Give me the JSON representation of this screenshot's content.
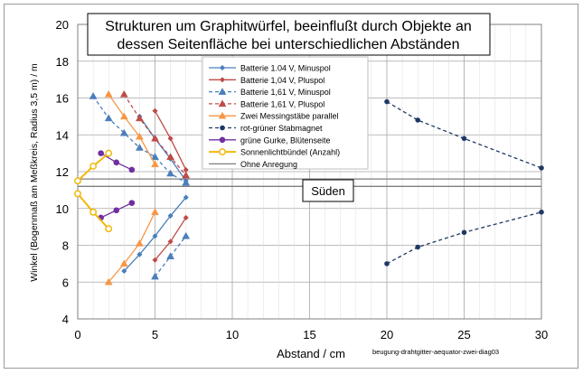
{
  "chart_data": {
    "type": "scatter",
    "title_line1": "Strukturen um Graphitwürfel, beeinflußt durch Objekte an",
    "title_line2": "dessen Seitenfläche bei unterschiedlichen Abständen",
    "xlabel": "Abstand / cm",
    "ylabel": "Winkel (Bogenmaß am Meßkreis, Radius 3,5 m) / m",
    "xlim": [
      0,
      30
    ],
    "ylim": [
      4,
      20
    ],
    "xticks": [
      0,
      5,
      10,
      15,
      20,
      25,
      30
    ],
    "yticks": [
      4,
      6,
      8,
      10,
      12,
      14,
      16,
      18,
      20
    ],
    "grid": true,
    "reference_lines": [
      11.2,
      11.6
    ],
    "annotation": "Süden",
    "annotation_y": 11.0,
    "footnote": "beugung-drahtgitter-aequator-zwei-diag03",
    "legend_position": "upper-middle",
    "series": [
      {
        "name": "Batterie 1.04 V, Minuspol",
        "color": "#4a7ebb",
        "marker": "diamond",
        "dash": "solid",
        "segments": [
          [
            [
              4,
              15
            ],
            [
              5,
              13.8
            ],
            [
              6,
              12.7
            ],
            [
              7,
              11.5
            ]
          ],
          [
            [
              3,
              6.6
            ],
            [
              4,
              7.5
            ],
            [
              5,
              8.5
            ],
            [
              6,
              9.6
            ],
            [
              7,
              10.6
            ]
          ]
        ]
      },
      {
        "name": "Batterie 1,04 V,  Pluspol",
        "color": "#be4b48",
        "marker": "diamond",
        "dash": "solid",
        "segments": [
          [
            [
              5,
              15.3
            ],
            [
              6,
              13.8
            ],
            [
              7,
              12.1
            ]
          ],
          [
            [
              5,
              7.2
            ],
            [
              6,
              8.2
            ],
            [
              7,
              9.5
            ]
          ]
        ]
      },
      {
        "name": "Batterie 1,61 V, Minuspol",
        "color": "#4a7ebb",
        "marker": "triangle",
        "dash": "dashed",
        "segments": [
          [
            [
              1,
              16.1
            ],
            [
              2,
              14.9
            ],
            [
              3,
              14.1
            ],
            [
              4,
              13.3
            ],
            [
              5,
              12.8
            ],
            [
              6,
              11.9
            ],
            [
              7,
              11.4
            ]
          ],
          [
            [
              5,
              6.3
            ],
            [
              6,
              7.4
            ],
            [
              7,
              8.5
            ]
          ]
        ]
      },
      {
        "name": "Batterie 1,61 V, Pluspol",
        "color": "#be4b48",
        "marker": "triangle",
        "dash": "dashed",
        "segments": [
          [
            [
              3,
              16.2
            ],
            [
              4,
              14.9
            ],
            [
              5,
              13.8
            ],
            [
              6,
              12.8
            ],
            [
              7,
              11.8
            ]
          ]
        ]
      },
      {
        "name": "Zwei Messingstäbe parallel",
        "color": "#f79646",
        "marker": "triangle",
        "dash": "solid",
        "segments": [
          [
            [
              2,
              16.2
            ],
            [
              3,
              15
            ],
            [
              4,
              13.9
            ],
            [
              5,
              12.4
            ]
          ],
          [
            [
              2,
              6
            ],
            [
              3,
              7
            ],
            [
              4,
              8.1
            ],
            [
              5,
              9.8
            ]
          ]
        ]
      },
      {
        "name": "rot-grüner Stabmagnet",
        "color": "#1f3864",
        "marker": "circle-small",
        "dash": "dashed",
        "segments": [
          [
            [
              20,
              15.8
            ],
            [
              22,
              14.8
            ],
            [
              25,
              13.8
            ],
            [
              30,
              12.2
            ]
          ],
          [
            [
              20,
              7
            ],
            [
              22,
              7.9
            ],
            [
              25,
              8.7
            ],
            [
              30,
              9.8
            ]
          ]
        ]
      },
      {
        "name": "grüne Gurke, Blütenseite",
        "color": "#7030a0",
        "marker": "circle",
        "dash": "solid",
        "segments": [
          [
            [
              1.5,
              13
            ],
            [
              2.5,
              12.5
            ],
            [
              3.5,
              12.1
            ]
          ],
          [
            [
              1.5,
              9.5
            ],
            [
              2.5,
              9.9
            ],
            [
              3.5,
              10.3
            ]
          ]
        ]
      },
      {
        "name": "Sonnenlichtbündel (Anzahl)",
        "color": "#f2b80e",
        "marker": "circle-open",
        "dash": "solid",
        "segments": [
          [
            [
              0,
              10.8
            ],
            [
              1,
              9.8
            ],
            [
              2,
              8.9
            ]
          ],
          [
            [
              0,
              11.5
            ],
            [
              1,
              12.3
            ],
            [
              2,
              13
            ]
          ]
        ]
      },
      {
        "name": "Ohne Anregung",
        "color": "#7f7f7f",
        "marker": "none",
        "dash": "solid",
        "segments": []
      }
    ]
  }
}
